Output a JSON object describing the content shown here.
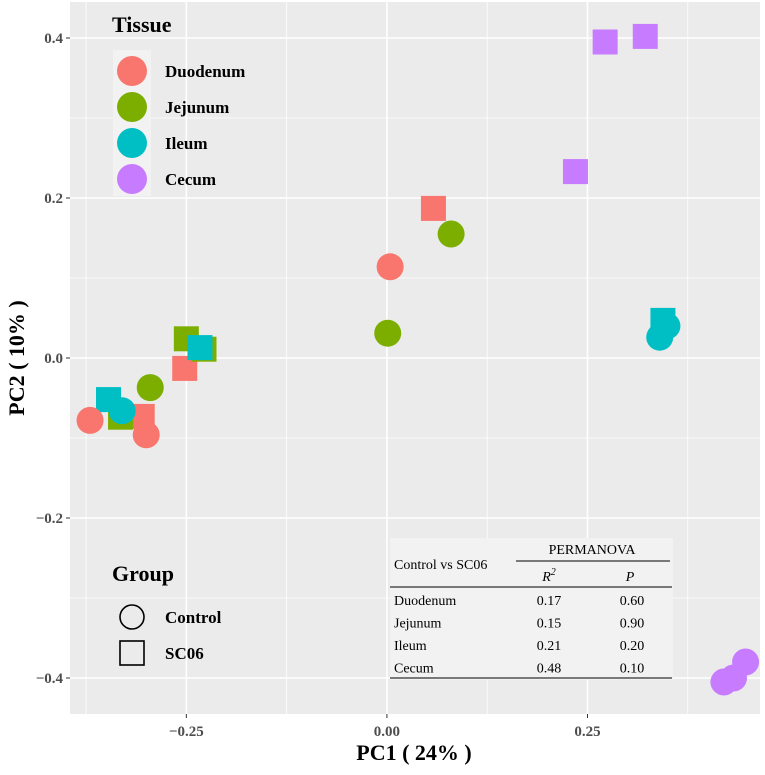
{
  "chart_data": {
    "type": "scatter",
    "title": "",
    "xlabel": "PC1 ( 24% )",
    "ylabel": "PC2 ( 10% )",
    "xlim": [
      -0.395,
      0.465
    ],
    "ylim": [
      -0.445,
      0.445
    ],
    "x_ticks": [
      -0.25,
      0.0,
      0.25
    ],
    "x_tick_labels": [
      "−0.25",
      "0.00",
      "0.25"
    ],
    "y_ticks": [
      0.4,
      0.2,
      0.0,
      -0.2,
      -0.4
    ],
    "y_tick_labels": [
      "0.4",
      "0.2",
      "0.0",
      "−0.2",
      "−0.4"
    ],
    "grid": true,
    "tissue_colors": {
      "Duodenum": "#f8766d",
      "Jejunum": "#7cae00",
      "Ileum": "#00bfc4",
      "Cecum": "#c77cff"
    },
    "points": [
      {
        "tissue": "Duodenum",
        "group": "Control",
        "x": -0.37,
        "y": -0.078
      },
      {
        "tissue": "Duodenum",
        "group": "Control",
        "x": -0.3,
        "y": -0.096
      },
      {
        "tissue": "Duodenum",
        "group": "Control",
        "x": 0.004,
        "y": 0.114
      },
      {
        "tissue": "Duodenum",
        "group": "SC06",
        "x": -0.305,
        "y": -0.073
      },
      {
        "tissue": "Duodenum",
        "group": "SC06",
        "x": -0.252,
        "y": -0.013
      },
      {
        "tissue": "Duodenum",
        "group": "SC06",
        "x": 0.058,
        "y": 0.187
      },
      {
        "tissue": "Jejunum",
        "group": "Control",
        "x": -0.295,
        "y": -0.037
      },
      {
        "tissue": "Jejunum",
        "group": "Control",
        "x": 0.001,
        "y": 0.031
      },
      {
        "tissue": "Jejunum",
        "group": "Control",
        "x": 0.08,
        "y": 0.155
      },
      {
        "tissue": "Jejunum",
        "group": "SC06",
        "x": -0.332,
        "y": -0.074
      },
      {
        "tissue": "Jejunum",
        "group": "SC06",
        "x": -0.25,
        "y": 0.024
      },
      {
        "tissue": "Jejunum",
        "group": "SC06",
        "x": -0.228,
        "y": 0.011
      },
      {
        "tissue": "Ileum",
        "group": "Control",
        "x": -0.33,
        "y": -0.066
      },
      {
        "tissue": "Ileum",
        "group": "Control",
        "x": 0.349,
        "y": 0.04
      },
      {
        "tissue": "Ileum",
        "group": "Control",
        "x": 0.34,
        "y": 0.026
      },
      {
        "tissue": "Ileum",
        "group": "SC06",
        "x": -0.347,
        "y": -0.052
      },
      {
        "tissue": "Ileum",
        "group": "SC06",
        "x": -0.233,
        "y": 0.013
      },
      {
        "tissue": "Ileum",
        "group": "SC06",
        "x": 0.344,
        "y": 0.047
      },
      {
        "tissue": "Cecum",
        "group": "Control",
        "x": 0.42,
        "y": -0.405
      },
      {
        "tissue": "Cecum",
        "group": "Control",
        "x": 0.432,
        "y": -0.4
      },
      {
        "tissue": "Cecum",
        "group": "Control",
        "x": 0.447,
        "y": -0.38
      },
      {
        "tissue": "Cecum",
        "group": "SC06",
        "x": 0.235,
        "y": 0.233
      },
      {
        "tissue": "Cecum",
        "group": "SC06",
        "x": 0.272,
        "y": 0.395
      },
      {
        "tissue": "Cecum",
        "group": "SC06",
        "x": 0.322,
        "y": 0.402
      }
    ],
    "legend_tissue": {
      "title": "Tissue",
      "position": "top-left",
      "items": [
        "Duodenum",
        "Jejunum",
        "Ileum",
        "Cecum"
      ]
    },
    "legend_group": {
      "title": "Group",
      "position": "bottom-left",
      "items": [
        "Control",
        "SC06"
      ]
    },
    "table": {
      "row_header": "Control vs SC06",
      "col_group": "PERMANOVA",
      "col_r2": "R",
      "col_r2_sup": "2",
      "col_p": "P",
      "rows": [
        {
          "tissue": "Duodenum",
          "r2": "0.17",
          "p": "0.60"
        },
        {
          "tissue": "Jejunum",
          "r2": "0.15",
          "p": "0.90"
        },
        {
          "tissue": "Ileum",
          "r2": "0.21",
          "p": "0.20"
        },
        {
          "tissue": "Cecum",
          "r2": "0.48",
          "p": "0.10"
        }
      ]
    }
  }
}
